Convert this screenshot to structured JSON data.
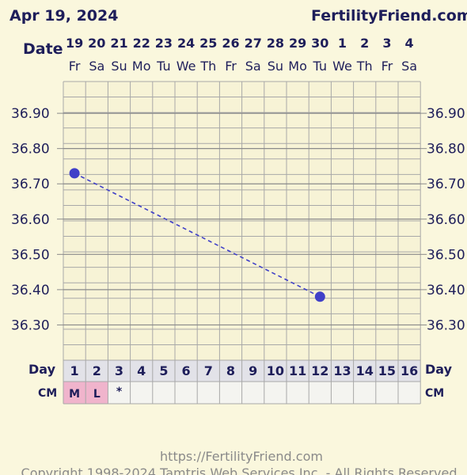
{
  "header": {
    "date": "Apr 19, 2024",
    "site": "FertilityFriend.com"
  },
  "chart_data": {
    "type": "line",
    "row_labels": {
      "date": "Date",
      "day": "Day",
      "cm": "CM"
    },
    "dates": [
      "19",
      "20",
      "21",
      "22",
      "23",
      "24",
      "25",
      "26",
      "27",
      "28",
      "29",
      "30",
      "1",
      "2",
      "3",
      "4"
    ],
    "weekdays": [
      "Fr",
      "Sa",
      "Su",
      "Mo",
      "Tu",
      "We",
      "Th",
      "Fr",
      "Sa",
      "Su",
      "Mo",
      "Tu",
      "We",
      "Th",
      "Fr",
      "Sa"
    ],
    "days": [
      "1",
      "2",
      "3",
      "4",
      "5",
      "6",
      "7",
      "8",
      "9",
      "10",
      "11",
      "12",
      "13",
      "14",
      "15",
      "16"
    ],
    "cm": [
      "M",
      "L",
      "*",
      "",
      "",
      "",
      "",
      "",
      "",
      "",
      "",
      "",
      "",
      "",
      "",
      ""
    ],
    "cm_highlight": [
      true,
      true,
      false,
      false,
      false,
      false,
      false,
      false,
      false,
      false,
      false,
      false,
      false,
      false,
      false,
      false
    ],
    "y_ticks": [
      "36.30",
      "36.40",
      "36.50",
      "36.60",
      "36.70",
      "36.80",
      "36.90"
    ],
    "ylim": [
      36.2,
      36.99
    ],
    "points": [
      {
        "day": 1,
        "temp": 36.73
      },
      {
        "day": 12,
        "temp": 36.38
      }
    ],
    "line_style": "dashed",
    "colors": {
      "series": "#4040c8",
      "cm_highlight": "#f0b4cc",
      "grid": "#a8a8a8"
    }
  },
  "footer": {
    "url": "https://FertilityFriend.com",
    "copyright": "Copyright 1998-2024 Tamtris Web Services Inc. - All Rights Reserved"
  }
}
